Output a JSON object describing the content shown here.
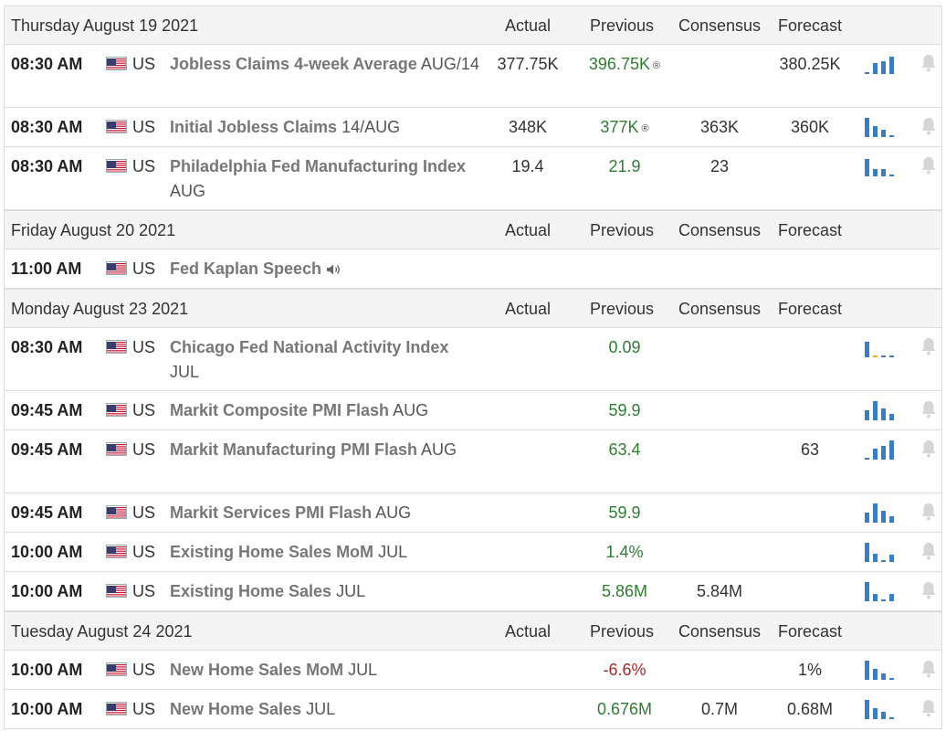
{
  "columns": {
    "actual": "Actual",
    "previous": "Previous",
    "consensus": "Consensus",
    "forecast": "Forecast"
  },
  "icons": {
    "flag": "us-flag-icon",
    "bell": "bell-icon",
    "bars": "bar-chart-icon",
    "speaker": "speaker-icon"
  },
  "colors": {
    "green": "#2e7d32",
    "red": "#a32a2a",
    "bar": "#3b7dbf",
    "bar_alt": "#f0a830"
  },
  "days": [
    {
      "date": "Thursday August 19 2021",
      "events": [
        {
          "time": "08:30 AM",
          "country": "US",
          "name": "Jobless Claims 4-week Average",
          "period": "AUG/14",
          "actual": "377.75K",
          "previous": "396.75K",
          "previous_revised": "®",
          "previous_color": "green",
          "consensus": "",
          "forecast": "380.25K",
          "lines": 2,
          "bars": [
            0.1,
            0.55,
            0.65,
            0.85
          ],
          "bell": true
        },
        {
          "time": "08:30 AM",
          "country": "US",
          "name": "Initial Jobless Claims",
          "period": "14/AUG",
          "actual": "348K",
          "previous": "377K",
          "previous_revised": "®",
          "previous_color": "green",
          "consensus": "363K",
          "forecast": "360K",
          "lines": 1,
          "bars": [
            0.95,
            0.55,
            0.35,
            0.1
          ],
          "bell": true
        },
        {
          "time": "08:30 AM",
          "country": "US",
          "name": "Philadelphia Fed Manufacturing Index",
          "period": "AUG",
          "actual": "19.4",
          "previous": "21.9",
          "previous_revised": "",
          "previous_color": "green",
          "consensus": "23",
          "forecast": "",
          "lines": 2,
          "bars": [
            0.85,
            0.35,
            0.35,
            0.1
          ],
          "bell": true
        }
      ]
    },
    {
      "date": "Friday August 20 2021",
      "events": [
        {
          "time": "11:00 AM",
          "country": "US",
          "name": "Fed Kaplan Speech",
          "period": "",
          "speaker": true,
          "actual": "",
          "previous": "",
          "previous_revised": "",
          "previous_color": "",
          "consensus": "",
          "forecast": "",
          "lines": 1,
          "bars": [],
          "bell": false
        }
      ]
    },
    {
      "date": "Monday August 23 2021",
      "events": [
        {
          "time": "08:30 AM",
          "country": "US",
          "name": "Chicago Fed National Activity Index",
          "period": "JUL",
          "actual": "",
          "previous": "0.09",
          "previous_revised": "",
          "previous_color": "green",
          "consensus": "",
          "forecast": "",
          "lines": 2,
          "bars": [
            0.75,
            0.1,
            0.1,
            0.1
          ],
          "alt_bar": 1,
          "bell": true
        },
        {
          "time": "09:45 AM",
          "country": "US",
          "name": "Markit Composite PMI Flash",
          "period": "AUG",
          "actual": "",
          "previous": "59.9",
          "previous_revised": "",
          "previous_color": "green",
          "consensus": "",
          "forecast": "",
          "lines": 1,
          "bars": [
            0.5,
            0.95,
            0.6,
            0.3
          ],
          "bell": true
        },
        {
          "time": "09:45 AM",
          "country": "US",
          "name": "Markit Manufacturing PMI Flash",
          "period": "AUG",
          "actual": "",
          "previous": "63.4",
          "previous_revised": "",
          "previous_color": "green",
          "consensus": "",
          "forecast": "63",
          "lines": 2,
          "bars": [
            0.1,
            0.55,
            0.7,
            0.95
          ],
          "bell": true
        },
        {
          "time": "09:45 AM",
          "country": "US",
          "name": "Markit Services PMI Flash",
          "period": "AUG",
          "actual": "",
          "previous": "59.9",
          "previous_revised": "",
          "previous_color": "green",
          "consensus": "",
          "forecast": "",
          "lines": 1,
          "bars": [
            0.5,
            0.95,
            0.6,
            0.3
          ],
          "bell": true
        },
        {
          "time": "10:00 AM",
          "country": "US",
          "name": "Existing Home Sales MoM",
          "period": "JUL",
          "actual": "",
          "previous": "1.4%",
          "previous_revised": "",
          "previous_color": "green",
          "consensus": "",
          "forecast": "",
          "lines": 1,
          "bars": [
            0.95,
            0.4,
            0.1,
            0.35
          ],
          "bell": true
        },
        {
          "time": "10:00 AM",
          "country": "US",
          "name": "Existing Home Sales",
          "period": "JUL",
          "actual": "",
          "previous": "5.86M",
          "previous_revised": "",
          "previous_color": "green",
          "consensus": "5.84M",
          "forecast": "",
          "lines": 1,
          "bars": [
            0.95,
            0.35,
            0.1,
            0.35
          ],
          "bell": true
        }
      ]
    },
    {
      "date": "Tuesday August 24 2021",
      "events": [
        {
          "time": "10:00 AM",
          "country": "US",
          "name": "New Home Sales MoM",
          "period": "JUL",
          "actual": "",
          "previous": "-6.6%",
          "previous_revised": "",
          "previous_color": "red",
          "consensus": "",
          "forecast": "1%",
          "lines": 1,
          "bars": [
            0.95,
            0.55,
            0.3,
            0.1
          ],
          "bell": true
        },
        {
          "time": "10:00 AM",
          "country": "US",
          "name": "New Home Sales",
          "period": "JUL",
          "actual": "",
          "previous": "0.676M",
          "previous_revised": "",
          "previous_color": "green",
          "consensus": "0.7M",
          "forecast": "0.68M",
          "lines": 1,
          "bars": [
            0.95,
            0.55,
            0.35,
            0.1
          ],
          "bell": true
        }
      ]
    }
  ]
}
